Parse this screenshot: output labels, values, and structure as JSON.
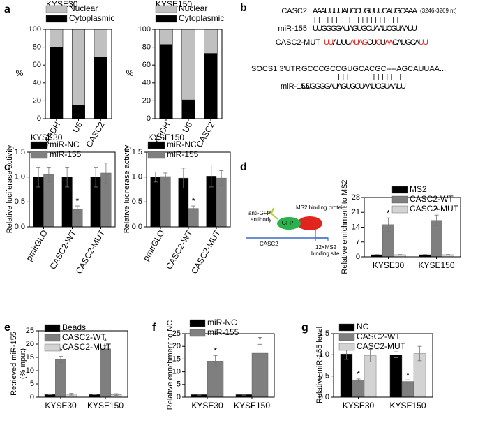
{
  "chart_data": [
    {
      "type": "stacked_bar",
      "panel": "a",
      "title": "KYSE30",
      "ylabel": "%",
      "categories": [
        "GAPDH",
        "U6",
        "CASC2"
      ],
      "series": [
        {
          "name": "Cytoplasmic",
          "color": "#000000",
          "values": [
            80,
            15,
            69
          ]
        },
        {
          "name": "Nuclear",
          "color": "#c0c0c0",
          "values": [
            20,
            85,
            31
          ]
        }
      ],
      "ylim": [
        0,
        100
      ],
      "yticks": [
        0,
        20,
        40,
        60,
        80,
        100
      ],
      "legend_order": "reverse"
    },
    {
      "type": "stacked_bar",
      "title": "KYSE150",
      "ylabel": "%",
      "categories": [
        "GAPDH",
        "U6",
        "CASC2"
      ],
      "series": [
        {
          "name": "Cytoplasmic",
          "color": "#000000",
          "values": [
            83,
            21,
            73
          ]
        },
        {
          "name": "Nuclear",
          "color": "#c0c0c0",
          "values": [
            17,
            79,
            27
          ]
        }
      ],
      "ylim": [
        0,
        100
      ],
      "yticks": [
        0,
        20,
        40,
        60,
        80,
        100
      ],
      "legend_order": "reverse"
    },
    {
      "type": "grouped_bar",
      "panel": "c",
      "title": "KYSE30",
      "ylabel": "Relative luciferase activity",
      "categories": [
        "pmirGLO",
        "CASC2-WT",
        "CASC2-MUT"
      ],
      "series": [
        {
          "name": "miR-NC",
          "color": "#000000",
          "values": [
            1.0,
            1.0,
            1.0
          ],
          "errors": [
            0.2,
            0.2,
            0.2
          ],
          "significance": [
            null,
            null,
            null
          ]
        },
        {
          "name": "miR-155",
          "color": "#7f7f7f",
          "values": [
            1.05,
            0.35,
            1.08
          ],
          "errors": [
            0.15,
            0.07,
            0.2
          ],
          "significance": [
            null,
            "*",
            null
          ]
        }
      ],
      "ylim": [
        0,
        1.5
      ],
      "yticks": [
        {
          "value": 0,
          "label": "0.0"
        },
        {
          "value": 0.5,
          "label": "0.5"
        },
        {
          "value": 1,
          "label": "1.0"
        },
        {
          "value": 1.5,
          "label": "1.5"
        }
      ]
    },
    {
      "type": "grouped_bar",
      "title": "KYSE150",
      "ylabel": "Relative luciferase activity",
      "categories": [
        "pmirGLO",
        "CASC2-WT",
        "CASC2-MUT"
      ],
      "series": [
        {
          "name": "miR-NC",
          "color": "#000000",
          "values": [
            1.0,
            0.98,
            1.02
          ],
          "errors": [
            0.1,
            0.2,
            0.22
          ],
          "significance": [
            null,
            null,
            null
          ]
        },
        {
          "name": "miR-155",
          "color": "#7f7f7f",
          "values": [
            1.01,
            0.37,
            0.98
          ],
          "errors": [
            0.07,
            0.05,
            0.15
          ],
          "significance": [
            null,
            "*",
            null
          ]
        }
      ],
      "ylim": [
        0,
        1.5
      ],
      "yticks": [
        {
          "value": 0,
          "label": "0.0"
        },
        {
          "value": 0.5,
          "label": "0.5"
        },
        {
          "value": 1,
          "label": "1.0"
        },
        {
          "value": 1.5,
          "label": "1.5"
        }
      ]
    },
    {
      "type": "grouped_bar",
      "panel": "d",
      "ylabel": "Relative enrichment to MS2",
      "categories": [
        "KYSE30",
        "KYSE150"
      ],
      "series": [
        {
          "name": "MS2",
          "color": "#000000",
          "values": [
            1.0,
            1.0
          ],
          "errors": [
            0.1,
            0.1
          ],
          "significance": [
            null,
            null
          ]
        },
        {
          "name": "CASC2-WT",
          "color": "#7f7f7f",
          "values": [
            15.2,
            17.2
          ],
          "errors": [
            3.2,
            2.5
          ],
          "significance": [
            "*",
            "*"
          ]
        },
        {
          "name": "CASC2-MUT",
          "color": "#d3d3d3",
          "values": [
            1.0,
            1.0
          ],
          "errors": [
            0.1,
            0.1
          ],
          "significance": [
            null,
            null
          ]
        }
      ],
      "ylim": [
        0,
        28
      ],
      "yticks": [
        0,
        7,
        14,
        21,
        28
      ]
    },
    {
      "type": "grouped_bar",
      "panel": "e",
      "ylabel": [
        "Retrieved miR-155",
        "(% input)"
      ],
      "categories": [
        "KYSE30",
        "KYSE150"
      ],
      "series": [
        {
          "name": "Beads",
          "color": "#000000",
          "values": [
            1.0,
            1.0
          ],
          "errors": [
            0.1,
            0.1
          ],
          "significance": [
            null,
            null
          ]
        },
        {
          "name": "CASC2-WT",
          "color": "#7f7f7f",
          "values": [
            14.2,
            18.2
          ],
          "errors": [
            1.2,
            1.2
          ],
          "significance": [
            "*",
            "*"
          ]
        },
        {
          "name": "CASC2-MUT",
          "color": "#d3d3d3",
          "values": [
            1.1,
            1.0
          ],
          "errors": [
            0.3,
            0.3
          ],
          "significance": [
            null,
            null
          ]
        }
      ],
      "ylim": [
        0,
        25
      ],
      "yticks": [
        0,
        5,
        10,
        15,
        20,
        25
      ]
    },
    {
      "type": "grouped_bar",
      "panel": "f",
      "ylabel": "Relative enrichment to NC",
      "categories": [
        "KYSE30",
        "KYSE150"
      ],
      "series": [
        {
          "name": "miR-NC",
          "color": "#000000",
          "values": [
            1.0,
            1.0
          ],
          "errors": [
            0.2,
            0.2
          ],
          "significance": [
            null,
            null
          ]
        },
        {
          "name": "miR-155",
          "color": "#7f7f7f",
          "values": [
            14.2,
            17.3
          ],
          "errors": [
            2.2,
            3.5
          ],
          "significance": [
            "*",
            "*"
          ]
        }
      ],
      "ylim": [
        0,
        25
      ],
      "yticks": [
        0,
        5,
        10,
        15,
        20,
        25
      ]
    },
    {
      "type": "grouped_bar",
      "panel": "g",
      "ylabel": "Relative miR-155 level",
      "categories": [
        "KYSE30",
        "KYSE150"
      ],
      "series": [
        {
          "name": "NC",
          "color": "#000000",
          "values": [
            1.02,
            1.0
          ],
          "errors": [
            0.13,
            0.07
          ],
          "significance": [
            null,
            null
          ]
        },
        {
          "name": "CASC2-WT",
          "color": "#7f7f7f",
          "values": [
            0.4,
            0.37
          ],
          "errors": [
            0.03,
            0.04
          ],
          "significance": [
            "*",
            "*"
          ]
        },
        {
          "name": "CASC2-MUT",
          "color": "#d3d3d3",
          "values": [
            0.98,
            1.03
          ],
          "errors": [
            0.15,
            0.17
          ],
          "significance": [
            null,
            null
          ]
        }
      ],
      "ylim": [
        0,
        1.5
      ],
      "yticks": [
        {
          "value": 0,
          "label": "0.0"
        },
        {
          "value": 0.5,
          "label": "0.5"
        },
        {
          "value": 1,
          "label": "1.0"
        },
        {
          "value": 1.5,
          "label": "1.5"
        }
      ]
    }
  ],
  "panel_b": {
    "label": "b",
    "casc2_label": "CASC2",
    "casc2": "AAAUUUUAUCCUGUUUCAUGCAAA",
    "casc2_note": "(3246-3269 nt)",
    "mir155_label": "miR-155",
    "mir155": "UUGGGGAUAGUGCUAAUCGUAAUU",
    "mut_label": "CASC2-MUT",
    "mut_segments": [
      {
        "text": "UU",
        "highlight": true
      },
      {
        "text": "AUUU",
        "highlight": false
      },
      {
        "text": "AUAG",
        "highlight": true
      },
      {
        "text": "CU",
        "highlight": false
      },
      {
        "text": "C",
        "highlight": true
      },
      {
        "text": "U",
        "highlight": false
      },
      {
        "text": "AA",
        "highlight": true
      },
      {
        "text": "CAUGCA",
        "highlight": false
      },
      {
        "text": "UU",
        "highlight": true
      }
    ],
    "highlight_color": "#e0201b",
    "socs1_label": "SOCS1 3'UTR",
    "socs1": "GCCCGCCGUGCACGC----AGCAUUAA...",
    "mir155_label_2": "miR-155",
    "mir155_2": "UUGGGGAUAGUGCUAAUCGUAAUU"
  },
  "panel_d_diagram": {
    "antibody": [
      "anti-GFP",
      "antibody"
    ],
    "gfp": "GFP",
    "protein": "MS2 binding protein",
    "rna": "CASC2",
    "site": [
      "12×MS2",
      "binding site"
    ]
  }
}
